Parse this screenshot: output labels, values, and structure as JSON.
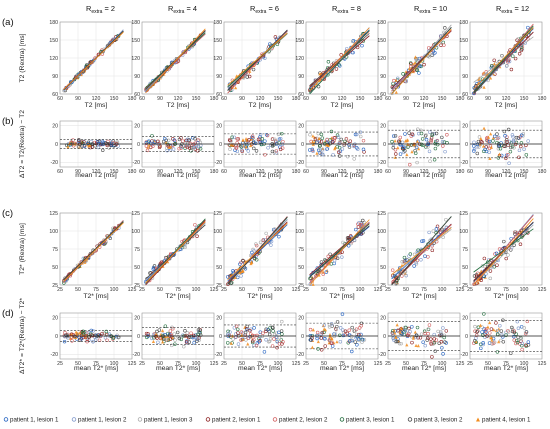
{
  "chart_data": [
    {
      "row": "a",
      "type": "scatter",
      "panel_label": "(a)",
      "columns": [
        "R_extra = 2",
        "R_extra = 4",
        "R_extra = 6",
        "R_extra = 8",
        "R_extra = 10",
        "R_extra = 12"
      ],
      "ylabel": "T2 (Rextra) [ms]",
      "xlabel": "T2 [ms]",
      "xlim": [
        60,
        180
      ],
      "ylim": [
        60,
        180
      ],
      "xticks": [
        "60",
        "90",
        "120",
        "150",
        "180"
      ],
      "yticks": [
        "60",
        "90",
        "120",
        "150",
        "180"
      ],
      "grid": true,
      "fit_lines": true,
      "approx_spread_ms": [
        3,
        5,
        8,
        10,
        13,
        14
      ]
    },
    {
      "row": "b",
      "type": "scatter",
      "panel_label": "(b)",
      "columns": [
        "R_extra = 2",
        "R_extra = 4",
        "R_extra = 6",
        "R_extra = 8",
        "R_extra = 10",
        "R_extra = 12"
      ],
      "ylabel": "ΔT2 = T2(Rextra) − T2",
      "xlabel": "mean T2 [ms]",
      "xlim": [
        60,
        180
      ],
      "ylim": [
        -25,
        25
      ],
      "xticks": [
        "60",
        "90",
        "120",
        "150",
        "180"
      ],
      "yticks": [
        "-20",
        "0",
        "20"
      ],
      "grid": true,
      "limits_of_agreement": [
        [
          -5,
          5
        ],
        [
          -8,
          8
        ],
        [
          -11,
          11
        ],
        [
          -13,
          13
        ],
        [
          -15,
          15
        ],
        [
          -15,
          15
        ]
      ]
    },
    {
      "row": "c",
      "type": "scatter",
      "panel_label": "(c)",
      "columns": [
        "R_extra = 2",
        "R_extra = 4",
        "R_extra = 6",
        "R_extra = 8",
        "R_extra = 10",
        "R_extra = 12"
      ],
      "ylabel": "T2* (Rextra) [ms]",
      "xlabel": "T2* [ms]",
      "xlim": [
        25,
        125
      ],
      "ylim": [
        25,
        125
      ],
      "xticks": [
        "25",
        "50",
        "75",
        "100",
        "125"
      ],
      "yticks": [
        "25",
        "50",
        "75",
        "100",
        "125"
      ],
      "grid": true,
      "fit_lines": true,
      "approx_spread_ms": [
        4,
        7,
        10,
        12,
        15,
        16
      ]
    },
    {
      "row": "d",
      "type": "scatter",
      "panel_label": "(d)",
      "columns": [
        "R_extra = 2",
        "R_extra = 4",
        "R_extra = 6",
        "R_extra = 8",
        "R_extra = 10",
        "R_extra = 12"
      ],
      "ylabel": "ΔT2* = T2*(Rextra) − T2*",
      "xlabel": "mean T2* [ms]",
      "xlim": [
        25,
        125
      ],
      "ylim": [
        -25,
        25
      ],
      "xticks": [
        "25",
        "50",
        "75",
        "100",
        "125"
      ],
      "yticks": [
        "-20",
        "0",
        "20"
      ],
      "grid": true,
      "limits_of_agreement": [
        [
          -6,
          6
        ],
        [
          -9,
          9
        ],
        [
          -12,
          12
        ],
        [
          -14,
          14
        ],
        [
          -16,
          16
        ],
        [
          -17,
          17
        ]
      ]
    }
  ],
  "legend": [
    {
      "label": "patient 1, lesion 1",
      "color": "#1f5fbf",
      "marker": "circle"
    },
    {
      "label": "patient 1, lesion 2",
      "color": "#7d96c9",
      "marker": "circle"
    },
    {
      "label": "patient 1, lesion 3",
      "color": "#a8a8a8",
      "marker": "circle"
    },
    {
      "label": "patient 2, lesion 1",
      "color": "#8b1e1e",
      "marker": "circle"
    },
    {
      "label": "patient 2, lesion 2",
      "color": "#cf5a5a",
      "marker": "circle"
    },
    {
      "label": "patient 3, lesion 1",
      "color": "#1e6b3a",
      "marker": "circle"
    },
    {
      "label": "patient 3, lesion 2",
      "color": "#444444",
      "marker": "circle"
    },
    {
      "label": "patient 4, lesion 1",
      "color": "#f28c1c",
      "marker": "triangle"
    }
  ]
}
